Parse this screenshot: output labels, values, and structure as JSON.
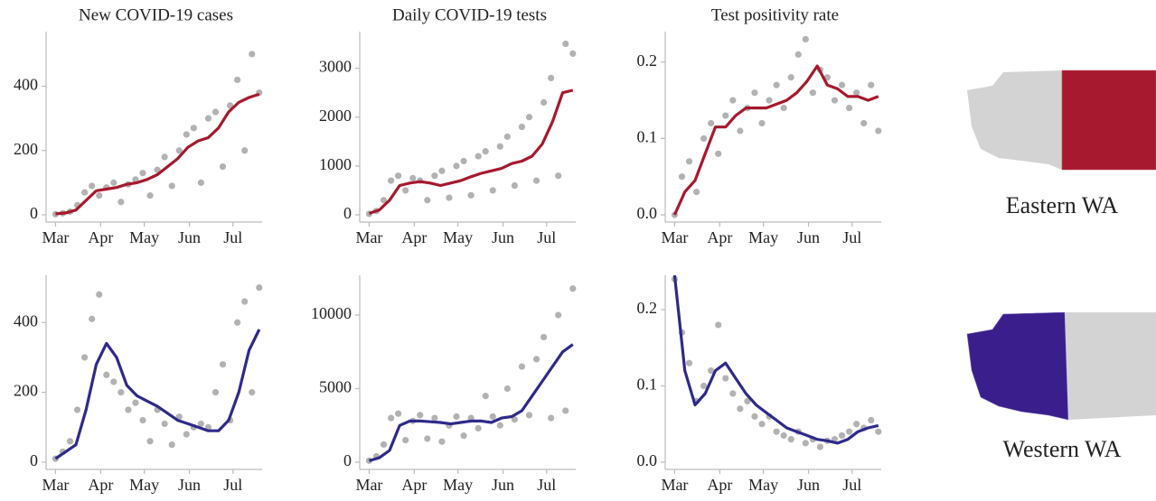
{
  "chart_data": [
    {
      "type": "line",
      "title": "New COVID-19 cases",
      "xlim": [
        -4,
        142
      ],
      "xticks": [
        {
          "value": 0,
          "label": "Mar"
        },
        {
          "value": 31,
          "label": "Apr"
        },
        {
          "value": 61,
          "label": "May"
        },
        {
          "value": 92,
          "label": "Jun"
        },
        {
          "value": 122,
          "label": "Jul"
        }
      ],
      "ylim": [
        0,
        570
      ],
      "yticks": [
        0,
        200,
        400
      ],
      "series": [
        {
          "type": "scatter",
          "color": "#555555",
          "x": [
            0,
            5,
            10,
            15,
            20,
            25,
            30,
            35,
            40,
            45,
            50,
            55,
            60,
            65,
            70,
            75,
            80,
            85,
            90,
            95,
            100,
            105,
            110,
            115,
            120,
            125,
            130,
            135,
            140
          ],
          "values": [
            2,
            5,
            10,
            30,
            70,
            90,
            60,
            85,
            100,
            40,
            95,
            110,
            130,
            60,
            140,
            180,
            90,
            200,
            250,
            270,
            100,
            300,
            320,
            150,
            340,
            420,
            200,
            500,
            380
          ]
        },
        {
          "type": "line",
          "color": "#a6192e",
          "x": [
            0,
            7,
            14,
            21,
            28,
            35,
            42,
            49,
            56,
            63,
            70,
            77,
            84,
            91,
            98,
            105,
            112,
            119,
            126,
            133,
            140
          ],
          "values": [
            3,
            6,
            15,
            45,
            75,
            80,
            85,
            95,
            100,
            110,
            125,
            150,
            175,
            210,
            230,
            240,
            270,
            320,
            350,
            365,
            375
          ]
        }
      ]
    },
    {
      "type": "line",
      "title": "Daily COVID-19 tests",
      "xlim": [
        -4,
        142
      ],
      "xticks": [
        {
          "value": 0,
          "label": "Mar"
        },
        {
          "value": 31,
          "label": "Apr"
        },
        {
          "value": 61,
          "label": "May"
        },
        {
          "value": 92,
          "label": "Jun"
        },
        {
          "value": 122,
          "label": "Jul"
        }
      ],
      "ylim": [
        0,
        3750
      ],
      "yticks": [
        0,
        1000,
        2000,
        3000
      ],
      "series": [
        {
          "type": "scatter",
          "color": "#555555",
          "x": [
            0,
            5,
            10,
            15,
            20,
            25,
            30,
            35,
            40,
            45,
            50,
            55,
            60,
            65,
            70,
            75,
            80,
            85,
            90,
            95,
            100,
            105,
            110,
            115,
            120,
            125,
            130,
            135,
            140
          ],
          "values": [
            20,
            80,
            300,
            700,
            800,
            500,
            750,
            700,
            300,
            800,
            900,
            350,
            1000,
            1100,
            400,
            1200,
            1300,
            500,
            1400,
            1600,
            600,
            1800,
            2000,
            700,
            2300,
            2800,
            800,
            3500,
            3300
          ]
        },
        {
          "type": "line",
          "color": "#a6192e",
          "x": [
            0,
            7,
            14,
            21,
            28,
            35,
            42,
            49,
            56,
            63,
            70,
            77,
            84,
            91,
            98,
            105,
            112,
            119,
            126,
            133,
            140
          ],
          "values": [
            30,
            100,
            300,
            600,
            650,
            680,
            650,
            600,
            650,
            700,
            780,
            850,
            900,
            950,
            1050,
            1100,
            1200,
            1450,
            1900,
            2500,
            2550
          ]
        }
      ]
    },
    {
      "type": "line",
      "title": "Test positivity rate",
      "xlim": [
        -4,
        142
      ],
      "xticks": [
        {
          "value": 0,
          "label": "Mar"
        },
        {
          "value": 31,
          "label": "Apr"
        },
        {
          "value": 61,
          "label": "May"
        },
        {
          "value": 92,
          "label": "Jun"
        },
        {
          "value": 122,
          "label": "Jul"
        }
      ],
      "ylim": [
        0,
        0.24
      ],
      "yticks": [
        {
          "value": 0,
          "label": "0.0"
        },
        0.1,
        0.2
      ],
      "series": [
        {
          "type": "scatter",
          "color": "#555555",
          "x": [
            0,
            5,
            10,
            15,
            20,
            25,
            30,
            35,
            40,
            45,
            50,
            55,
            60,
            65,
            70,
            75,
            80,
            85,
            90,
            95,
            100,
            105,
            110,
            115,
            120,
            125,
            130,
            135,
            140
          ],
          "values": [
            0.0,
            0.05,
            0.07,
            0.03,
            0.1,
            0.12,
            0.08,
            0.13,
            0.15,
            0.11,
            0.14,
            0.16,
            0.12,
            0.15,
            0.17,
            0.14,
            0.18,
            0.21,
            0.23,
            0.16,
            0.19,
            0.18,
            0.15,
            0.17,
            0.14,
            0.16,
            0.12,
            0.17,
            0.11
          ]
        },
        {
          "type": "line",
          "color": "#a6192e",
          "x": [
            0,
            7,
            14,
            21,
            28,
            35,
            42,
            49,
            56,
            63,
            70,
            77,
            84,
            91,
            98,
            105,
            112,
            119,
            126,
            133,
            140
          ],
          "values": [
            0.0,
            0.03,
            0.045,
            0.08,
            0.115,
            0.115,
            0.13,
            0.14,
            0.14,
            0.14,
            0.145,
            0.15,
            0.16,
            0.175,
            0.195,
            0.17,
            0.165,
            0.155,
            0.155,
            0.15,
            0.155
          ]
        }
      ]
    },
    {
      "type": "line",
      "xlim": [
        -4,
        142
      ],
      "xticks": [
        {
          "value": 0,
          "label": "Mar"
        },
        {
          "value": 31,
          "label": "Apr"
        },
        {
          "value": 61,
          "label": "May"
        },
        {
          "value": 92,
          "label": "Jun"
        },
        {
          "value": 122,
          "label": "Jul"
        }
      ],
      "ylim": [
        0,
        535
      ],
      "yticks": [
        0,
        200,
        400
      ],
      "series": [
        {
          "type": "scatter",
          "color": "#555555",
          "x": [
            0,
            5,
            10,
            15,
            20,
            25,
            30,
            35,
            40,
            45,
            50,
            55,
            60,
            65,
            70,
            75,
            80,
            85,
            90,
            95,
            100,
            105,
            110,
            115,
            120,
            125,
            130,
            135,
            140
          ],
          "values": [
            10,
            30,
            60,
            150,
            300,
            410,
            480,
            250,
            230,
            200,
            150,
            170,
            120,
            60,
            150,
            110,
            50,
            130,
            80,
            100,
            110,
            100,
            200,
            280,
            120,
            400,
            460,
            200,
            500
          ]
        },
        {
          "type": "line",
          "color": "#2e2a8a",
          "x": [
            0,
            7,
            14,
            21,
            28,
            35,
            42,
            49,
            56,
            63,
            70,
            77,
            84,
            91,
            98,
            105,
            112,
            119,
            126,
            133,
            140
          ],
          "values": [
            10,
            30,
            50,
            150,
            280,
            340,
            300,
            220,
            190,
            175,
            160,
            140,
            120,
            110,
            100,
            90,
            90,
            120,
            200,
            320,
            380
          ]
        }
      ]
    },
    {
      "type": "line",
      "xlim": [
        -4,
        142
      ],
      "xticks": [
        {
          "value": 0,
          "label": "Mar"
        },
        {
          "value": 31,
          "label": "Apr"
        },
        {
          "value": 61,
          "label": "May"
        },
        {
          "value": 92,
          "label": "Jun"
        },
        {
          "value": 122,
          "label": "Jul"
        }
      ],
      "ylim": [
        0,
        12700
      ],
      "yticks": [
        0,
        5000,
        10000
      ],
      "series": [
        {
          "type": "scatter",
          "color": "#555555",
          "x": [
            0,
            5,
            10,
            15,
            20,
            25,
            30,
            35,
            40,
            45,
            50,
            55,
            60,
            65,
            70,
            75,
            80,
            85,
            90,
            95,
            100,
            105,
            110,
            115,
            120,
            125,
            130,
            135,
            140
          ],
          "values": [
            100,
            400,
            1200,
            3000,
            3300,
            1500,
            2800,
            3200,
            1600,
            3000,
            1400,
            2500,
            3100,
            1800,
            3000,
            2300,
            4500,
            3100,
            2500,
            5000,
            2900,
            6500,
            3200,
            7000,
            8500,
            3000,
            10000,
            3500,
            11800
          ]
        },
        {
          "type": "line",
          "color": "#2e2a8a",
          "x": [
            0,
            7,
            14,
            21,
            28,
            35,
            42,
            49,
            56,
            63,
            70,
            77,
            84,
            91,
            98,
            105,
            112,
            119,
            126,
            133,
            140
          ],
          "values": [
            100,
            300,
            800,
            2500,
            2800,
            2800,
            2750,
            2700,
            2600,
            2700,
            2800,
            2800,
            2700,
            3000,
            3100,
            3500,
            4500,
            5500,
            6500,
            7500,
            8000
          ]
        }
      ]
    },
    {
      "type": "line",
      "xlim": [
        -4,
        142
      ],
      "xticks": [
        {
          "value": 0,
          "label": "Mar"
        },
        {
          "value": 31,
          "label": "Apr"
        },
        {
          "value": 61,
          "label": "May"
        },
        {
          "value": 92,
          "label": "Jun"
        },
        {
          "value": 122,
          "label": "Jul"
        }
      ],
      "ylim": [
        0,
        0.245
      ],
      "yticks": [
        {
          "value": 0,
          "label": "0.0"
        },
        0.1,
        0.2
      ],
      "series": [
        {
          "type": "scatter",
          "color": "#555555",
          "x": [
            0,
            5,
            10,
            15,
            20,
            25,
            30,
            35,
            40,
            45,
            50,
            55,
            60,
            65,
            70,
            75,
            80,
            85,
            90,
            95,
            100,
            105,
            110,
            115,
            120,
            125,
            130,
            135,
            140
          ],
          "values": [
            0.24,
            0.17,
            0.13,
            0.08,
            0.1,
            0.12,
            0.18,
            0.11,
            0.09,
            0.07,
            0.08,
            0.06,
            0.05,
            0.06,
            0.04,
            0.035,
            0.03,
            0.04,
            0.025,
            0.03,
            0.02,
            0.028,
            0.03,
            0.035,
            0.04,
            0.05,
            0.045,
            0.055,
            0.04
          ]
        },
        {
          "type": "line",
          "color": "#2e2a8a",
          "x": [
            0,
            7,
            14,
            21,
            28,
            35,
            42,
            49,
            56,
            63,
            70,
            77,
            84,
            91,
            98,
            105,
            112,
            119,
            126,
            133,
            140
          ],
          "values": [
            0.245,
            0.12,
            0.075,
            0.09,
            0.12,
            0.13,
            0.11,
            0.09,
            0.075,
            0.065,
            0.055,
            0.045,
            0.04,
            0.035,
            0.03,
            0.028,
            0.025,
            0.03,
            0.04,
            0.045,
            0.048
          ]
        }
      ]
    }
  ],
  "maps": [
    "Eastern WA",
    "Western WA"
  ]
}
